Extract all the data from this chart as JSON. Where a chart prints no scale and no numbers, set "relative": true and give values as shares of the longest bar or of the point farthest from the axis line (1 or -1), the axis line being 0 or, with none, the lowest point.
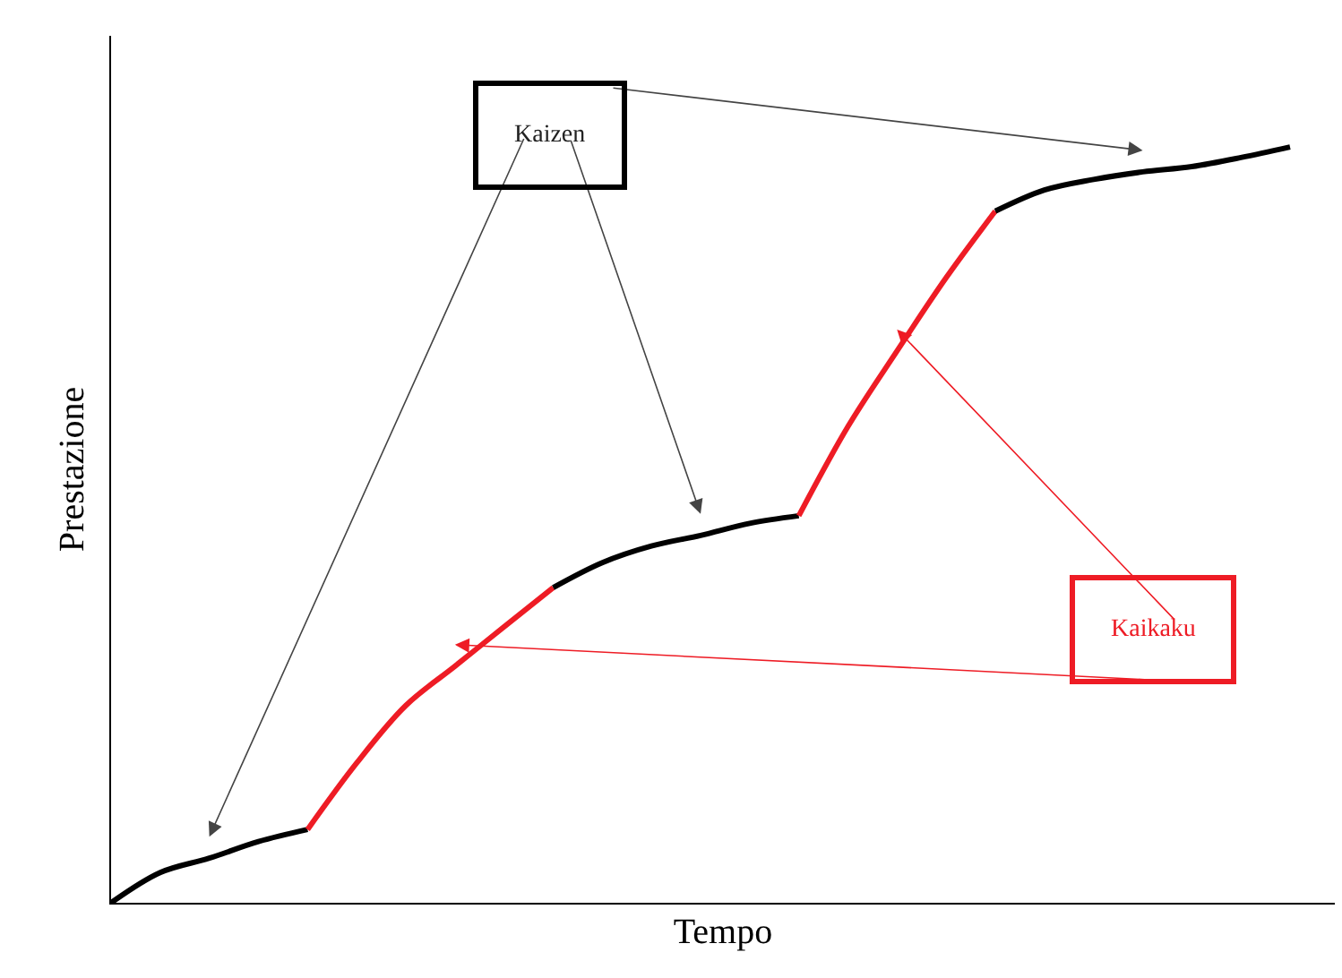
{
  "chart_data": {
    "type": "line",
    "relative": true,
    "xlabel": "Tempo",
    "ylabel": "Prestazione",
    "categories": [
      null,
      null,
      null,
      null,
      null,
      null,
      null,
      null,
      null,
      null,
      null,
      null,
      null,
      null,
      null,
      null,
      null,
      null,
      null,
      null,
      null,
      null,
      null,
      null,
      null
    ],
    "series": [
      {
        "color": "#000000",
        "values": [
          0,
          0.04,
          0.059,
          0.081,
          0.097,
          null,
          null,
          null,
          null,
          null,
          null,
          null,
          null,
          null,
          null,
          null,
          null,
          null,
          null,
          null,
          null,
          null,
          null,
          null,
          null
        ]
      },
      {
        "color": "#ee1c25",
        "values": [
          null,
          null,
          null,
          null,
          0.097,
          0.185,
          0.261,
          0.313,
          0.365,
          0.417,
          null,
          null,
          null,
          null,
          null,
          null,
          null,
          null,
          null,
          null,
          null,
          null,
          null,
          null,
          null
        ]
      },
      {
        "color": "#000000",
        "values": [
          null,
          null,
          null,
          null,
          null,
          null,
          null,
          null,
          null,
          0.417,
          0.45,
          0.472,
          0.486,
          0.502,
          0.512,
          null,
          null,
          null,
          null,
          null,
          null,
          null,
          null,
          null,
          null
        ]
      },
      {
        "color": "#ee1c25",
        "values": [
          null,
          null,
          null,
          null,
          null,
          null,
          null,
          null,
          null,
          null,
          null,
          null,
          null,
          null,
          0.512,
          0.63,
          0.73,
          0.827,
          0.915,
          null,
          null,
          null,
          null,
          null,
          null
        ]
      },
      {
        "color": "#000000",
        "values": [
          null,
          null,
          null,
          null,
          null,
          null,
          null,
          null,
          null,
          null,
          null,
          null,
          null,
          null,
          null,
          null,
          null,
          null,
          0.915,
          0.943,
          0.957,
          0.967,
          0.974,
          0.986,
          1
        ]
      }
    ],
    "annotations": [
      "Kaizen",
      "Kaikaku"
    ],
    "legend": false,
    "marker": "none",
    "line_style": "solid",
    "tick_labels": false
  }
}
